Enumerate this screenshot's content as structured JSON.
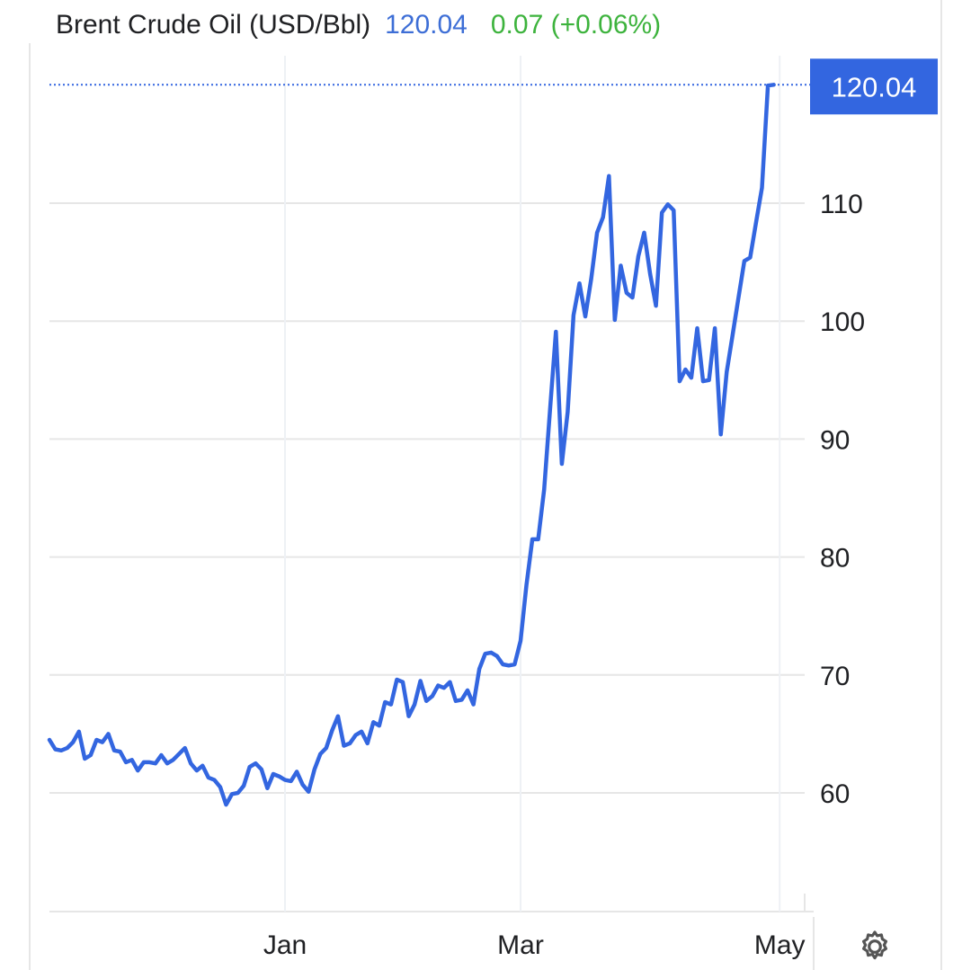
{
  "header": {
    "title": "Brent Crude Oil (USD/Bbl)",
    "price": "120.04",
    "change": "0.07 (+0.06%)"
  },
  "controls": {
    "settings_icon": "gear-icon"
  },
  "colors": {
    "line": "#3366e0",
    "price_text": "#3d6ed6",
    "change_text": "#3db33d",
    "grid": "#e6e6e6",
    "badge": "#3366e0"
  },
  "chart_data": {
    "type": "line",
    "title": "Brent Crude Oil (USD/Bbl)",
    "xlabel": "",
    "ylabel": "",
    "y_ticks": [
      60,
      70,
      80,
      90,
      100,
      110
    ],
    "y_tick_labels": [
      "60",
      "70",
      "80",
      "90",
      "100",
      "110"
    ],
    "ylim": [
      50,
      120
    ],
    "x_tick_labels": [
      "Jan",
      "Mar",
      "May"
    ],
    "x_tick_index": [
      40,
      80,
      124
    ],
    "last_value_label": "120.04",
    "grid": true,
    "legend": "none",
    "series": [
      {
        "values": [
          64.5,
          63.7,
          63.6,
          63.8,
          64.3,
          65.2,
          62.9,
          63.2,
          64.5,
          64.3,
          65.0,
          63.6,
          63.5,
          62.6,
          62.8,
          61.9,
          62.6,
          62.6,
          62.5,
          63.2,
          62.5,
          62.8,
          63.3,
          63.8,
          62.5,
          61.9,
          62.3,
          61.3,
          61.1,
          60.5,
          59.0,
          59.9,
          60.0,
          60.6,
          62.2,
          62.5,
          62.0,
          60.4,
          61.6,
          61.4,
          61.1,
          61.0,
          61.8,
          60.7,
          60.1,
          62.0,
          63.3,
          63.8,
          65.3,
          66.5,
          64.0,
          64.2,
          64.9,
          65.2,
          64.2,
          66.0,
          65.7,
          67.7,
          67.5,
          69.6,
          69.4,
          66.5,
          67.5,
          69.5,
          67.8,
          68.2,
          69.1,
          68.9,
          69.4,
          67.8,
          67.9,
          68.7,
          67.5,
          70.5,
          71.8,
          71.9,
          71.6,
          70.9,
          70.8,
          70.9,
          72.9,
          77.6,
          81.5,
          81.5,
          85.7,
          92.5,
          99.1,
          87.9,
          92.3,
          100.5,
          103.2,
          100.4,
          103.6,
          107.5,
          108.8,
          112.3,
          100.1,
          104.7,
          102.4,
          102.0,
          105.5,
          107.5,
          104.0,
          101.3,
          109.2,
          109.9,
          109.4,
          94.9,
          95.9,
          95.2,
          99.4,
          94.9,
          95.0,
          99.4,
          90.4,
          95.7,
          98.8,
          102.0,
          105.1,
          105.4,
          108.4,
          111.3,
          119.97,
          120.04
        ]
      }
    ]
  }
}
